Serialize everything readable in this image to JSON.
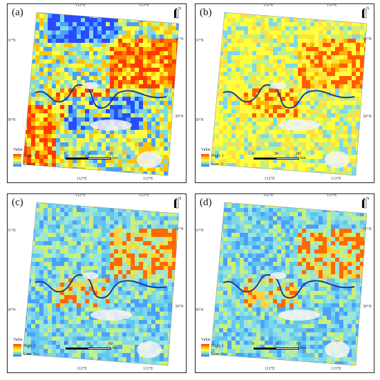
{
  "panels": [
    {
      "label": "(a)",
      "palette": "warm"
    },
    {
      "label": "(b)",
      "palette": "yellow"
    },
    {
      "label": "(c)",
      "palette": "cyan"
    },
    {
      "label": "(d)",
      "palette": "cyan"
    }
  ],
  "map": {
    "lon_ticks": [
      "112°E",
      "113°E"
    ],
    "lat_ticks": [
      "31°N",
      "30°N"
    ],
    "north_label": "N",
    "legend": {
      "title": "Value",
      "high": "High: 1",
      "low": "Low: 0"
    },
    "scale": {
      "labels": [
        "0",
        "30",
        "60"
      ],
      "unit": "km"
    }
  },
  "colors": {
    "high": "#ff3a00",
    "mid": "#ffff3c",
    "low": "#2a6cff",
    "river": "#1a3a9a"
  }
}
